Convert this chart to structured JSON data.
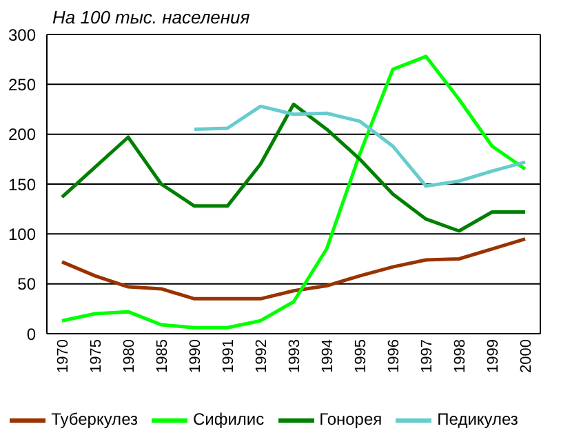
{
  "chart_data": {
    "type": "line",
    "title": "На 100 тыс. населения",
    "categories": [
      "1970",
      "1975",
      "1980",
      "1985",
      "1990",
      "1991",
      "1992",
      "1993",
      "1994",
      "1995",
      "1996",
      "1997",
      "1998",
      "1999",
      "2000"
    ],
    "series": [
      {
        "name": "Туберкулез",
        "color": "#993300",
        "values": [
          72,
          58,
          47,
          45,
          35,
          35,
          35,
          43,
          48,
          58,
          67,
          74,
          75,
          85,
          95
        ]
      },
      {
        "name": "Сифилис",
        "color": "#00ff00",
        "values": [
          13,
          20,
          22,
          9,
          6,
          6,
          13,
          32,
          85,
          180,
          265,
          278,
          235,
          188,
          165
        ]
      },
      {
        "name": "Гонорея",
        "color": "#008000",
        "values": [
          137,
          167,
          197,
          150,
          128,
          128,
          170,
          230,
          205,
          175,
          140,
          115,
          103,
          122,
          122
        ]
      },
      {
        "name": "Педикулез",
        "color": "#66cccc",
        "values": [
          null,
          null,
          null,
          null,
          205,
          206,
          228,
          220,
          221,
          213,
          188,
          148,
          153,
          163,
          172
        ]
      }
    ],
    "ylim": [
      0,
      300
    ],
    "yticks": [
      0,
      50,
      100,
      150,
      200,
      250,
      300
    ],
    "grid": "y",
    "legend": "bottom",
    "marker": "none",
    "line_style": "solid"
  }
}
